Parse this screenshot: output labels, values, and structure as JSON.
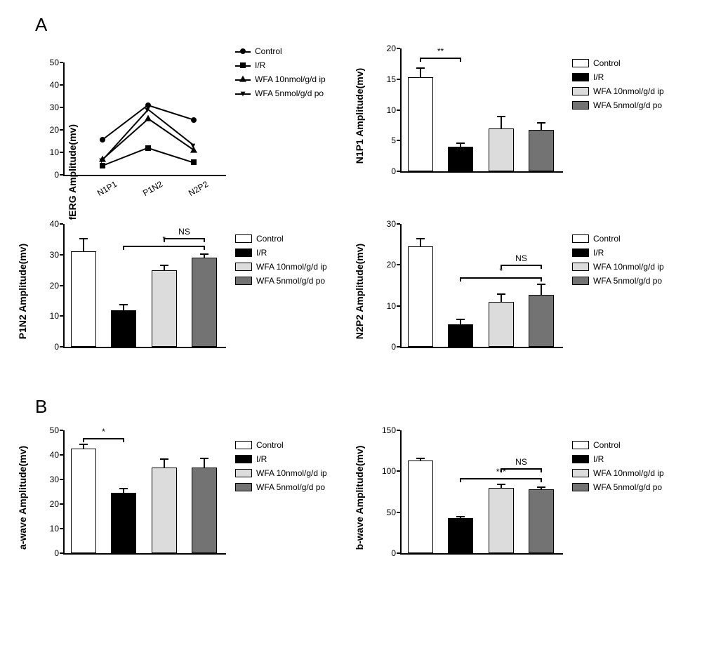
{
  "colors": {
    "control": "#ffffff",
    "ir": "#000000",
    "wfa_ip": "#dcdcdc",
    "wfa_po": "#737373",
    "axis": "#000000",
    "background": "#ffffff"
  },
  "legend_groups": [
    "Control",
    "I/R",
    "WFA 10nmol/g/d ip",
    "WFA 5nmol/g/d po"
  ],
  "sections": {
    "A": "A",
    "B": "B"
  },
  "lineChart": {
    "ylabel": "fERG Amplitude(mv)",
    "categories": [
      "N1P1",
      "P1N2",
      "N2P2"
    ],
    "ylim": [
      0,
      50
    ],
    "ytick_step": 10,
    "series": [
      {
        "name": "Control",
        "marker": "circle",
        "values": [
          15.5,
          31,
          24.5
        ]
      },
      {
        "name": "I/R",
        "marker": "square",
        "values": [
          4,
          12,
          5.5
        ]
      },
      {
        "name": "WFA 10nmol/g/d ip",
        "marker": "triangle",
        "values": [
          7,
          25,
          11
        ]
      },
      {
        "name": "WFA 5nmol/g/d po",
        "marker": "down-caret",
        "values": [
          6.5,
          29,
          13
        ]
      }
    ]
  },
  "barCharts": [
    {
      "id": "n1p1",
      "ylabel": "N1P1 Amplitude(mv)",
      "ylim": [
        0,
        20
      ],
      "ytick_step": 5,
      "bars": [
        {
          "val": 15.3,
          "err": 1.6,
          "color": "#ffffff"
        },
        {
          "val": 4.0,
          "err": 0.7,
          "color": "#000000"
        },
        {
          "val": 7.0,
          "err": 2.0,
          "color": "#dcdcdc"
        },
        {
          "val": 6.7,
          "err": 1.3,
          "color": "#737373"
        }
      ],
      "sig": [
        {
          "from": 0,
          "to": 1,
          "label": "**",
          "y": 18.5
        }
      ]
    },
    {
      "id": "p1n2",
      "ylabel": "P1N2 Amplitude(mv)",
      "ylim": [
        0,
        40
      ],
      "ytick_step": 10,
      "bars": [
        {
          "val": 31,
          "err": 4.5,
          "color": "#ffffff"
        },
        {
          "val": 12,
          "err": 2.0,
          "color": "#000000"
        },
        {
          "val": 25,
          "err": 1.8,
          "color": "#dcdcdc"
        },
        {
          "val": 29,
          "err": 1.5,
          "color": "#737373"
        }
      ],
      "sig": [
        {
          "from": 2,
          "to": 3,
          "label": "NS",
          "y": 35.5
        },
        {
          "from": 1,
          "to": 3,
          "label": "*",
          "y": 33
        }
      ]
    },
    {
      "id": "n2p2",
      "ylabel": "N2P2 Amplitude(mv)",
      "ylim": [
        0,
        30
      ],
      "ytick_step": 10,
      "bars": [
        {
          "val": 24.5,
          "err": 2.0,
          "color": "#ffffff"
        },
        {
          "val": 5.5,
          "err": 1.3,
          "color": "#000000"
        },
        {
          "val": 11,
          "err": 2.0,
          "color": "#dcdcdc"
        },
        {
          "val": 12.7,
          "err": 2.8,
          "color": "#737373"
        }
      ],
      "sig": [
        {
          "from": 2,
          "to": 3,
          "label": "NS",
          "y": 20
        },
        {
          "from": 1,
          "to": 3,
          "label": "*",
          "y": 17
        }
      ]
    },
    {
      "id": "awave",
      "ylabel": "a-wave Amplitude(mv)",
      "ylim": [
        0,
        50
      ],
      "ytick_step": 10,
      "bars": [
        {
          "val": 42.5,
          "err": 2.0,
          "color": "#ffffff"
        },
        {
          "val": 24.5,
          "err": 2.2,
          "color": "#000000"
        },
        {
          "val": 35,
          "err": 3.5,
          "color": "#dcdcdc"
        },
        {
          "val": 35,
          "err": 4.0,
          "color": "#737373"
        }
      ],
      "sig": [
        {
          "from": 0,
          "to": 1,
          "label": "*",
          "y": 47
        }
      ]
    },
    {
      "id": "bwave",
      "ylabel": "b-wave Amplitude(mv)",
      "ylim": [
        0,
        150
      ],
      "ytick_step": 50,
      "bars": [
        {
          "val": 113,
          "err": 4,
          "color": "#ffffff"
        },
        {
          "val": 43,
          "err": 2.5,
          "color": "#000000"
        },
        {
          "val": 80,
          "err": 5,
          "color": "#dcdcdc"
        },
        {
          "val": 78,
          "err": 3.5,
          "color": "#737373"
        }
      ],
      "sig": [
        {
          "from": 2,
          "to": 3,
          "label": "NS",
          "y": 104
        },
        {
          "from": 1,
          "to": 3,
          "label": "***",
          "y": 92
        }
      ]
    }
  ]
}
